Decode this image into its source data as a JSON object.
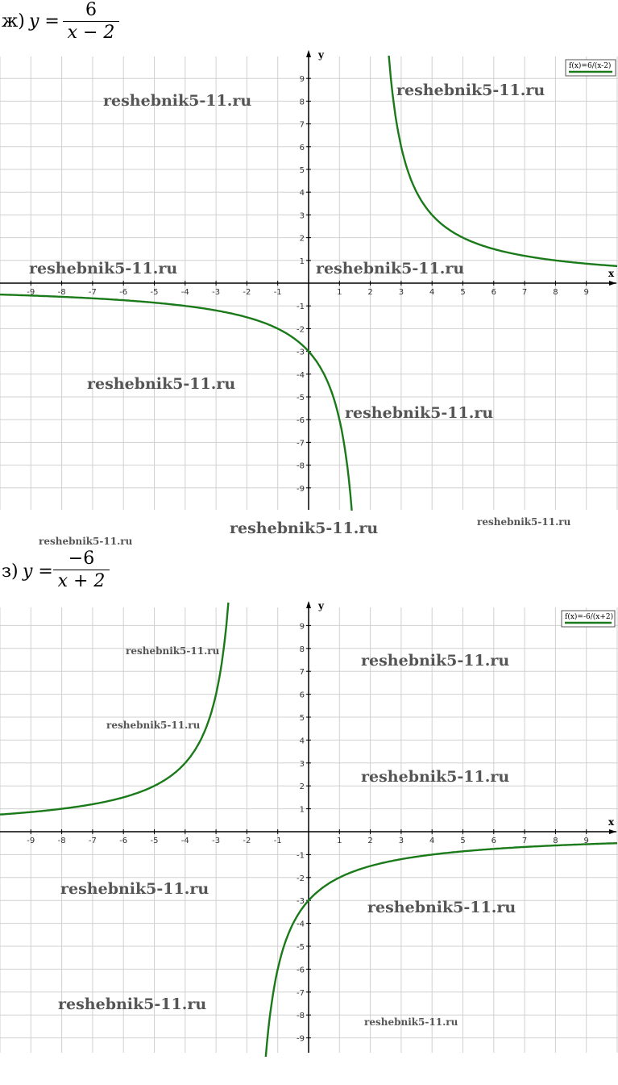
{
  "task_zh": {
    "label": "ж)",
    "y_eq": "y =",
    "numerator": "6",
    "denominator": "x − 2"
  },
  "task_z": {
    "label": "з)",
    "y_eq": "y =",
    "numerator": "−6",
    "denominator": "x + 2"
  },
  "watermark": "reshebnik5-11.ru",
  "colors": {
    "curve": "#1a7a1a",
    "grid": "#d0d0d0",
    "axis": "#000000"
  },
  "chart_data": [
    {
      "type": "line",
      "legend": "f(x)=6/(x-2)",
      "legend_placement": "top-right",
      "xlabel": "x",
      "ylabel": "y",
      "xlim": [
        -10,
        10
      ],
      "ylim": [
        -10,
        10
      ],
      "grid": true,
      "x_ticks": [
        -9,
        -8,
        -7,
        -6,
        -5,
        -4,
        -3,
        -2,
        -1,
        1,
        2,
        3,
        4,
        5,
        6,
        7,
        8,
        9
      ],
      "y_ticks": [
        9,
        8,
        7,
        6,
        5,
        4,
        3,
        2,
        1,
        -1,
        -2,
        -3,
        -4,
        -5,
        -6,
        -7,
        -8,
        -9
      ],
      "function": {
        "a": 6,
        "c": -2
      },
      "series": [
        {
          "name": "f(x)=6/(x-2)",
          "x": [
            -10,
            -8,
            -6,
            -4,
            -2,
            0,
            1,
            1.4
          ],
          "y": [
            -0.5,
            -0.6,
            -0.75,
            -1,
            -1.5,
            -3,
            -6,
            -10
          ]
        },
        {
          "name": "f(x)=6/(x-2)",
          "x": [
            2.6,
            3,
            4,
            5,
            6,
            8,
            10
          ],
          "y": [
            10,
            6,
            3,
            2,
            1.5,
            1,
            0.75
          ]
        }
      ]
    },
    {
      "type": "line",
      "legend": "f(x)=-6/(x+2)",
      "legend_placement": "top-right",
      "xlabel": "x",
      "ylabel": "y",
      "xlim": [
        -10,
        10
      ],
      "ylim": [
        -10,
        10
      ],
      "grid": true,
      "x_ticks": [
        -9,
        -8,
        -7,
        -6,
        -5,
        -4,
        -3,
        -2,
        -1,
        1,
        2,
        3,
        4,
        5,
        6,
        7,
        8,
        9
      ],
      "y_ticks": [
        9,
        8,
        7,
        6,
        5,
        4,
        3,
        2,
        1,
        -1,
        -2,
        -3,
        -4,
        -5,
        -6,
        -7,
        -8,
        -9
      ],
      "function": {
        "a": -6,
        "c": 2
      },
      "series": [
        {
          "name": "f(x)=-6/(x+2)",
          "x": [
            -10,
            -8,
            -6,
            -5,
            -4,
            -3,
            -2.6
          ],
          "y": [
            0.75,
            1,
            1.5,
            2,
            3,
            6,
            10
          ]
        },
        {
          "name": "f(x)=-6/(x+2)",
          "x": [
            -1.4,
            -1,
            0,
            2,
            4,
            6,
            8,
            10
          ],
          "y": [
            -10,
            -6,
            -3,
            -1.5,
            -1,
            -0.75,
            -0.6,
            -0.5
          ]
        }
      ]
    }
  ]
}
